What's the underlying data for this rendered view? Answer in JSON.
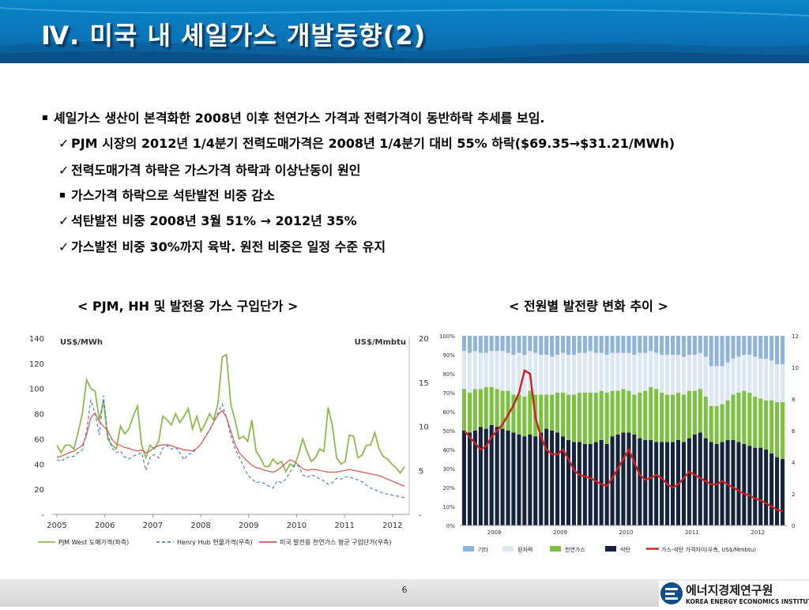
{
  "slide": {
    "title": "Ⅳ. 미국 내 셰일가스 개발동향(2)",
    "page_number": "6"
  },
  "bullets": [
    {
      "marker": "square",
      "text": "셰일가스 생산이 본격화한 2008년 이후 천연가스 가격과 전력가격이 동반하락 추세를 보임."
    },
    {
      "marker": "check",
      "text": "PJM 시장의 2012년 1/4분기 전력도매가격은 2008년 1/4분기 대비 55% 하락($69.35→$31.21/MWh)"
    },
    {
      "marker": "check",
      "text": "전력도매가격 하락은 가스가격 하락과 이상난동이 원인"
    },
    {
      "marker": "square",
      "text": "가스가격 하락으로 석탄발전 비중 감소"
    },
    {
      "marker": "check",
      "text": "석탄발전 비중 2008년 3월 51% → 2012년 35%"
    },
    {
      "marker": "check",
      "text": "가스발전 비중 30%까지 육박. 원전 비중은 일정 수준 유지"
    }
  ],
  "markers": {
    "check": "✓",
    "square": "▪"
  },
  "logo": {
    "name_kr": "에너지경제연구원",
    "name_en": "KOREA ENERGY ECONOMICS INSTITUTE"
  },
  "chart_data": [
    {
      "type": "line",
      "caption": "< PJM, HH 및 발전용 가스 구입단가 >",
      "y_left_unit": "US$/MWh",
      "y_right_unit": "US$/Mmbtu",
      "y_left_ticks": [
        "140",
        "120",
        "100",
        "80",
        "60",
        "40",
        "20",
        "-"
      ],
      "y_right_ticks": [
        "20",
        "15",
        "10",
        "5",
        "-"
      ],
      "ylim_left": [
        0,
        140
      ],
      "ylim_right": [
        0,
        20
      ],
      "x_ticks": [
        "2005",
        "2006",
        "2007",
        "2008",
        "2009",
        "2010",
        "2011",
        "2012"
      ],
      "x_start": 2005.0,
      "x_end": 2012.25,
      "grid": false,
      "legend_position": "bottom",
      "series": [
        {
          "name": "PJM West 도매가격(좌측)",
          "axis": "left",
          "color": "#8dba4d",
          "dash": "",
          "values": [
            55,
            49,
            55,
            55,
            52,
            65,
            80,
            107,
            100,
            98,
            75,
            90,
            60,
            55,
            52,
            70,
            64,
            68,
            78,
            86,
            55,
            45,
            55,
            52,
            58,
            78,
            75,
            71,
            80,
            73,
            78,
            84,
            68,
            78,
            66,
            72,
            80,
            75,
            88,
            125,
            127,
            88,
            75,
            60,
            62,
            58,
            75,
            50,
            45,
            38,
            38,
            44,
            40,
            42,
            34,
            40,
            38,
            48,
            60,
            50,
            42,
            45,
            52,
            50,
            85,
            70,
            45,
            40,
            42,
            63,
            62,
            45,
            47,
            55,
            55,
            65,
            52,
            46,
            44,
            40,
            37,
            33,
            38
          ]
        },
        {
          "name": "Henry Hub 현물가격(우측)",
          "axis": "right",
          "color": "#4f7fc4",
          "dash": "4,3",
          "values": [
            6.2,
            6.0,
            6.4,
            6.5,
            6.6,
            7.0,
            7.3,
            9.5,
            13.0,
            11.5,
            9.0,
            13.5,
            9.0,
            7.5,
            7.0,
            7.2,
            6.5,
            6.3,
            6.6,
            6.8,
            7.0,
            5.0,
            6.5,
            6.8,
            6.4,
            7.5,
            7.8,
            7.4,
            7.6,
            7.0,
            6.2,
            6.8,
            7.0,
            7.5,
            8.0,
            8.8,
            9.5,
            10.5,
            11.5,
            12.5,
            11.0,
            9.0,
            7.5,
            6.5,
            5.5,
            4.5,
            4.0,
            3.6,
            3.7,
            3.5,
            3.2,
            3.0,
            3.8,
            3.6,
            4.0,
            4.8,
            5.6,
            5.5,
            4.5,
            4.2,
            4.5,
            4.3,
            4.0,
            3.8,
            3.4,
            3.6,
            4.1,
            4.0,
            4.3,
            4.2,
            4.1,
            3.9,
            3.7,
            3.3,
            3.0,
            2.8,
            2.6,
            2.4,
            2.3,
            2.2,
            2.1,
            2.0,
            1.9
          ]
        },
        {
          "name": "미국 발전용 천연가스 평균 구입단가(우측)",
          "axis": "right",
          "color": "#d9534f",
          "dash": "",
          "values": [
            6.5,
            6.6,
            6.8,
            7.0,
            7.2,
            7.5,
            7.8,
            9.0,
            11.0,
            11.5,
            10.5,
            10.0,
            9.5,
            8.5,
            8.0,
            7.8,
            7.6,
            7.5,
            7.3,
            7.2,
            7.3,
            7.0,
            7.2,
            7.6,
            7.8,
            7.9,
            7.9,
            7.8,
            7.6,
            7.5,
            7.3,
            7.3,
            7.2,
            7.5,
            8.0,
            8.8,
            9.6,
            10.5,
            11.3,
            11.8,
            11.0,
            9.5,
            8.0,
            7.0,
            6.5,
            6.0,
            5.6,
            5.3,
            5.2,
            5.0,
            4.9,
            4.8,
            5.0,
            5.4,
            5.8,
            6.2,
            6.0,
            5.6,
            5.2,
            5.0,
            5.1,
            5.1,
            5.0,
            4.9,
            4.8,
            4.8,
            4.8,
            4.9,
            5.0,
            5.1,
            5.0,
            4.9,
            4.8,
            4.7,
            4.6,
            4.5,
            4.4,
            4.2,
            4.0,
            3.8,
            3.6,
            3.4,
            3.2
          ]
        }
      ]
    },
    {
      "type": "bar",
      "stacked": true,
      "caption": "< 전원별 발전량 변화 추이 >",
      "y_left_ticks": [
        "100%",
        "90%",
        "80%",
        "70%",
        "60%",
        "50%",
        "40%",
        "30%",
        "20%",
        "10%",
        "0%"
      ],
      "y_right_ticks": [
        "12",
        "10",
        "8",
        "6",
        "4",
        "2",
        "0"
      ],
      "ylim_left": [
        0,
        100
      ],
      "ylim_right": [
        0,
        12
      ],
      "x_ticks": [
        "2008",
        "2009",
        "2010",
        "2011",
        "2012"
      ],
      "grid": false,
      "legend_position": "bottom",
      "legend": [
        {
          "name": "기타",
          "color": "#8fb3d9"
        },
        {
          "name": "원자력",
          "color": "#dde7f3"
        },
        {
          "name": "천연가스",
          "color": "#7cc142"
        },
        {
          "name": "석탄",
          "color": "#15233f"
        },
        {
          "name": "가스-석탄 가격차이(우측, US$/Mmbtu)",
          "color": "#cc1f1f"
        }
      ],
      "coal": [
        50,
        49,
        50,
        52,
        51,
        53,
        52,
        51,
        50,
        49,
        48,
        47,
        48,
        47,
        49,
        51,
        50,
        49,
        47,
        45,
        44,
        44,
        43,
        43,
        44,
        45,
        43,
        47,
        48,
        49,
        49,
        48,
        46,
        45,
        45,
        44,
        44,
        44,
        44,
        45,
        44,
        46,
        48,
        49,
        46,
        44,
        43,
        44,
        45,
        45,
        44,
        43,
        42,
        41,
        41,
        40,
        38,
        36,
        35
      ],
      "gas": [
        22,
        21,
        22,
        20,
        22,
        20,
        20,
        20,
        21,
        20,
        21,
        21,
        23,
        22,
        20,
        18,
        19,
        21,
        23,
        24,
        25,
        26,
        27,
        27,
        26,
        26,
        27,
        24,
        23,
        23,
        22,
        21,
        24,
        26,
        28,
        28,
        26,
        25,
        25,
        25,
        25,
        25,
        23,
        23,
        22,
        19,
        20,
        20,
        21,
        24,
        26,
        28,
        28,
        27,
        26,
        26,
        28,
        29,
        30
      ],
      "nuclear": [
        20,
        21,
        20,
        19,
        18,
        19,
        20,
        21,
        20,
        21,
        22,
        22,
        21,
        22,
        21,
        21,
        20,
        20,
        21,
        21,
        21,
        21,
        21,
        22,
        21,
        20,
        20,
        20,
        20,
        19,
        20,
        21,
        21,
        20,
        19,
        19,
        20,
        21,
        21,
        20,
        20,
        19,
        19,
        19,
        21,
        21,
        21,
        20,
        20,
        19,
        19,
        19,
        20,
        21,
        21,
        22,
        21,
        20,
        20
      ],
      "spread": [
        6.0,
        5.6,
        5.2,
        4.8,
        5.0,
        5.6,
        6.0,
        6.4,
        7.0,
        7.6,
        8.4,
        9.8,
        9.6,
        6.8,
        5.6,
        4.8,
        4.5,
        4.5,
        4.8,
        4.2,
        3.5,
        3.2,
        3.1,
        3.0,
        2.8,
        2.6,
        2.5,
        3.0,
        3.6,
        4.2,
        4.8,
        4.0,
        3.2,
        2.9,
        3.0,
        3.2,
        3.0,
        2.6,
        2.4,
        2.6,
        3.0,
        3.4,
        3.2,
        3.0,
        2.8,
        2.6,
        2.6,
        2.8,
        2.6,
        2.4,
        2.2,
        2.0,
        1.9,
        1.7,
        1.6,
        1.4,
        1.2,
        1.0,
        0.9
      ]
    }
  ]
}
